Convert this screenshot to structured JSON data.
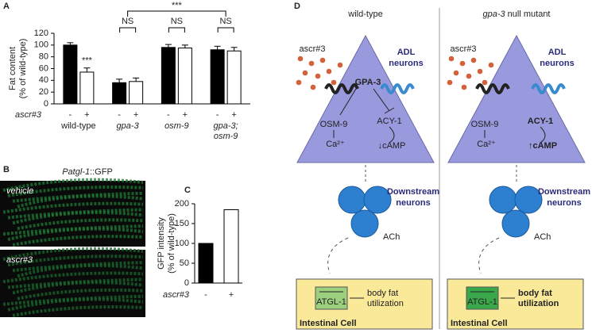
{
  "panel_labels": [
    "A",
    "B",
    "C",
    "D"
  ],
  "chart_data": [
    {
      "type": "bar",
      "y_label": [
        "Fat content",
        "(% of wild-type)"
      ],
      "x_label": "ascr#3",
      "categories": [
        "wild-type",
        "gpa-3",
        "osm-9",
        [
          "gpa-3;",
          "osm-9"
        ]
      ],
      "series": [
        {
          "name": "-",
          "color": "#000000",
          "values": [
            100,
            36,
            96,
            92
          ],
          "errors": [
            4,
            6,
            5,
            6
          ]
        },
        {
          "name": "+",
          "color": "#ffffff",
          "values": [
            54,
            38,
            95,
            90
          ],
          "errors": [
            7,
            6,
            5,
            6
          ]
        }
      ],
      "ylim": [
        0,
        120
      ],
      "yticks": [
        0,
        20,
        40,
        60,
        80,
        100,
        120
      ],
      "grid": false,
      "annotations": [
        "***",
        "NS",
        "NS",
        "NS",
        "***"
      ]
    },
    {
      "type": "bar",
      "y_label": [
        "GFP intensity",
        "(% of wild-type)"
      ],
      "x_label": "ascr#3",
      "categories": [
        "-",
        "+"
      ],
      "values": [
        100,
        185
      ],
      "colors": [
        "#000000",
        "#ffffff"
      ],
      "ylim": [
        0,
        200
      ],
      "yticks": [
        0,
        50,
        100,
        150,
        200
      ],
      "grid": false
    }
  ],
  "image_panel": {
    "title_gene": "Patgl-1",
    "title_suffix": "::GFP",
    "labels": [
      "vehicle",
      "ascr#3"
    ]
  },
  "diagram": {
    "columns": [
      {
        "title_italic": "",
        "title": "wild-type",
        "ligand": "ascr#3",
        "neuron": [
          "ADL",
          "neurons"
        ],
        "g_protein": "GPA-3",
        "channel": "OSM-9",
        "cyclase": "ACY-1",
        "ion": "Ca²⁺",
        "camp": "↓cAMP",
        "downstream": [
          "Downstream",
          "neurons"
        ],
        "transmitter": "ACh",
        "enzyme": "ATGL-1",
        "output": [
          "body fat",
          "utilization"
        ],
        "cell": "Intestinal Cell"
      },
      {
        "title_italic": "gpa-3",
        "title": " null mutant",
        "ligand": "ascr#3",
        "neuron": [
          "ADL",
          "neurons"
        ],
        "channel": "OSM-9",
        "cyclase": "ACY-1",
        "ion": "Ca²⁺",
        "camp": "↑cAMP",
        "downstream": [
          "Downstream",
          "neurons"
        ],
        "transmitter": "ACh",
        "enzyme": "ATGL-1",
        "output": [
          "body fat",
          "utilization"
        ],
        "cell": "Intestinal Cell"
      }
    ]
  }
}
